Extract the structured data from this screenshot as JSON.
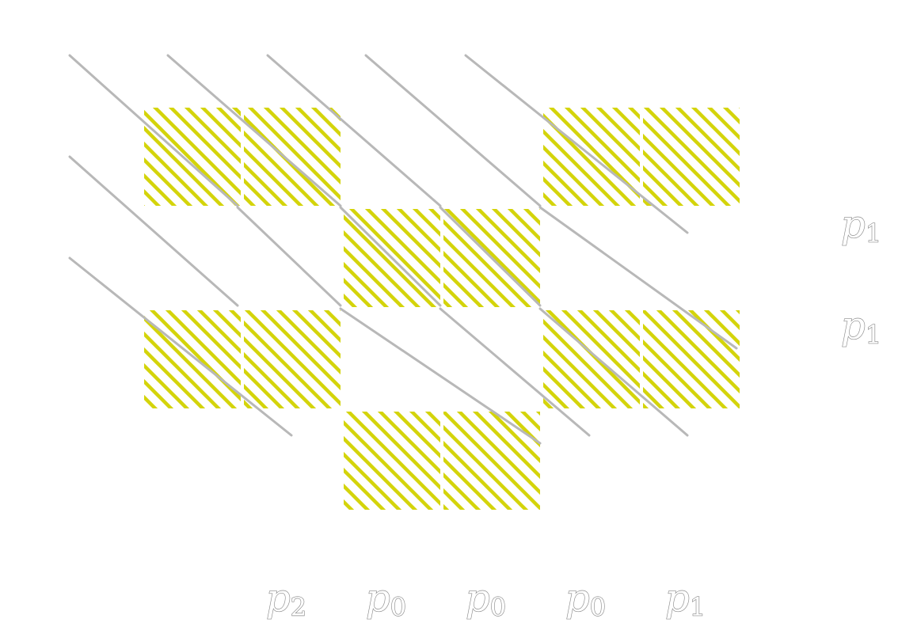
{
  "colors": {
    "hatch": "#d4d40a",
    "hatch_background": "#ffffff",
    "diagonal_line": "#b8b8b8",
    "label_outline": "#8a8a8a"
  },
  "grid": {
    "columns": 6,
    "rows": 4,
    "filled_cells": [
      [
        0,
        0
      ],
      [
        1,
        0
      ],
      [
        4,
        0
      ],
      [
        5,
        0
      ],
      [
        2,
        1
      ],
      [
        3,
        1
      ],
      [
        0,
        2
      ],
      [
        1,
        2
      ],
      [
        4,
        2
      ],
      [
        5,
        2
      ],
      [
        2,
        3
      ],
      [
        3,
        3
      ]
    ]
  },
  "bottom_labels": [
    {
      "name": "p",
      "sub": "2"
    },
    {
      "name": "p",
      "sub": "0"
    },
    {
      "name": "p",
      "sub": "0"
    },
    {
      "name": "p",
      "sub": "0"
    },
    {
      "name": "p",
      "sub": "1"
    }
  ],
  "right_labels": [
    {
      "name": "p",
      "sub": "1"
    },
    {
      "name": "p",
      "sub": "1"
    }
  ]
}
